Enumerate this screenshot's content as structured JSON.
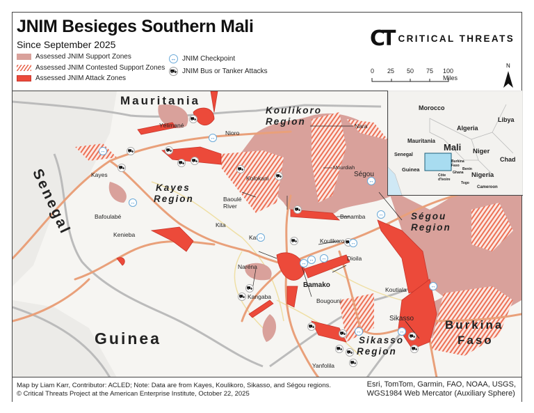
{
  "header": {
    "title": "JNIM Besieges Southern Mali",
    "subtitle": "Since September 2025"
  },
  "legend": {
    "support": "Assessed JNIM Support Zones",
    "contested": "Assessed JNIM Contested Support Zones",
    "attack": "Assessed JNIM Attack Zones",
    "checkpoint": "JNIM Checkpoint",
    "bus": "JNIM Bus or Tanker Attacks"
  },
  "colors": {
    "support": "#d9a19b",
    "contested": "#e8654d",
    "attack": "#ec4a3a",
    "road": "#e9a07a",
    "checkpoint": "#1f7ac4"
  },
  "logo": {
    "mark": "CT",
    "text": "CRITICAL THREATS"
  },
  "scale": {
    "ticks": [
      "0",
      "25",
      "50",
      "75",
      "100 Miles"
    ]
  },
  "north": "N",
  "map": {
    "countries": {
      "mauritania": "Mauritania",
      "senegal": "Senegal",
      "guinea": "Guinea",
      "burkina1": "Burkina",
      "burkina2": "Faso"
    },
    "regions": {
      "koulikoro1": "Koulikoro",
      "koulikoro2": "Region",
      "kayes1": "Kayes",
      "kayes2": "Region",
      "segou1": "Ségou",
      "segou2": "Region",
      "sikasso1": "Sikasso",
      "sikasso2": "Region"
    },
    "cities": {
      "yelimane": "Yélimané",
      "nioro": "Nioro",
      "nara": "Nara",
      "mourdiah": "Mourdiah",
      "kayes": "Kayes",
      "bafoulabe": "Bafoulabé",
      "kenieba": "Kenieba",
      "kolokani": "Kolokani",
      "baoule1": "Baoulé",
      "baoule2": "River",
      "kita": "Kita",
      "kati": "Kati",
      "banamba": "Banamba",
      "segou": "Ségou",
      "koulikoro": "Koulikoro",
      "dioila": "Dioila",
      "narena": "Naréna",
      "bamako": "Bamako",
      "koutiala": "Koutiala",
      "kangaba": "Kangaba",
      "bougouni": "Bougouni",
      "sikasso": "Sikasso",
      "yanfolila": "Yanfolila"
    }
  },
  "inset": {
    "labels": {
      "morocco": "Morocco",
      "algeria": "Algeria",
      "libya": "Libya",
      "mauritania": "Mauritania",
      "mali": "Mali",
      "niger": "Niger",
      "senegal": "Senegal",
      "chad": "Chad",
      "guinea": "Guinea",
      "burkina": "Burkina Faso",
      "benin": "Benin",
      "ghana": "Ghana",
      "nigeria": "Nigeria",
      "cote": "Côte d'Ivoire",
      "togo": "Togo",
      "cameroon": "Cameroon"
    }
  },
  "footer": {
    "left1": "Map by Liam Karr, Contributor: ACLED; Note: Data are from Kayes, Koulikoro, Sikasso, and Ségou regions.",
    "left2": "© Critical Threats Project at the American Enterprise Institute, October 22, 2025",
    "right1": "Esri, TomTom, Garmin, FAO, NOAA, USGS,",
    "right2": "WGS1984 Web Mercator (Auxiliary Sphere)"
  }
}
